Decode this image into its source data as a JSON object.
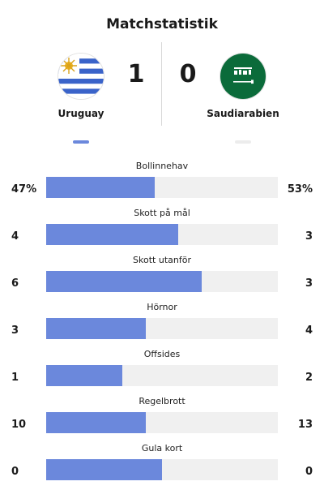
{
  "title": "Matchstatistik",
  "home": {
    "name": "Uruguay",
    "score": "1",
    "color": "#6b88dc"
  },
  "away": {
    "name": "Saudiarabien",
    "score": "0",
    "color": "#ececec"
  },
  "stats": [
    {
      "label": "Bollinnehav",
      "home": "47%",
      "away": "53%",
      "home_share": 0.47
    },
    {
      "label": "Skott på mål",
      "home": "4",
      "away": "3",
      "home_share": 0.57
    },
    {
      "label": "Skott utanför",
      "home": "6",
      "away": "3",
      "home_share": 0.67
    },
    {
      "label": "Hörnor",
      "home": "3",
      "away": "4",
      "home_share": 0.43
    },
    {
      "label": "Offsides",
      "home": "1",
      "away": "2",
      "home_share": 0.33
    },
    {
      "label": "Regelbrott",
      "home": "10",
      "away": "13",
      "home_share": 0.43
    },
    {
      "label": "Gula kort",
      "home": "0",
      "away": "0",
      "home_share": 0.5
    }
  ]
}
